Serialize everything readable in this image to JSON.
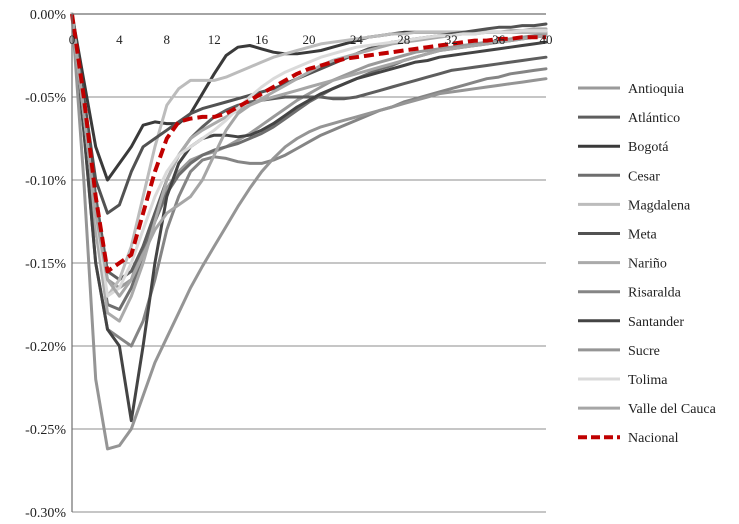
{
  "chart_data": {
    "type": "line",
    "title": "",
    "xlabel": "",
    "ylabel": "",
    "x": [
      0,
      1,
      2,
      3,
      4,
      5,
      6,
      7,
      8,
      9,
      10,
      11,
      12,
      13,
      14,
      15,
      16,
      17,
      18,
      19,
      20,
      21,
      22,
      23,
      24,
      25,
      26,
      27,
      28,
      29,
      30,
      31,
      32,
      33,
      34,
      35,
      36,
      37,
      38,
      39,
      40
    ],
    "xticks": [
      0,
      4,
      8,
      12,
      16,
      20,
      24,
      28,
      32,
      36,
      40
    ],
    "xtick_labels": [
      "0",
      "4",
      "8",
      "12",
      "16",
      "20",
      "24",
      "28",
      "32",
      "36",
      "40"
    ],
    "ylim": [
      -0.3,
      0.0
    ],
    "yticks": [
      0.0,
      -0.05,
      -0.1,
      -0.15,
      -0.2,
      -0.25,
      -0.3
    ],
    "ytick_labels": [
      "0.00%",
      "-0.05%",
      "-0.10%",
      "-0.15%",
      "-0.20%",
      "-0.25%",
      "-0.30%"
    ],
    "grid": "horizontal",
    "legend_position": "right",
    "series": [
      {
        "name": "Antioquia",
        "color": "#9a9a9a",
        "width": 3,
        "dash": "",
        "values": [
          0,
          -0.06,
          -0.12,
          -0.16,
          -0.165,
          -0.16,
          -0.14,
          -0.12,
          -0.105,
          -0.095,
          -0.088,
          -0.085,
          -0.083,
          -0.08,
          -0.076,
          -0.072,
          -0.067,
          -0.062,
          -0.057,
          -0.052,
          -0.048,
          -0.044,
          -0.04,
          -0.037,
          -0.034,
          -0.031,
          -0.029,
          -0.027,
          -0.025,
          -0.023,
          -0.022,
          -0.021,
          -0.02,
          -0.019,
          -0.018,
          -0.017,
          -0.016,
          -0.015,
          -0.014,
          -0.013,
          -0.012
        ]
      },
      {
        "name": "Atlántico",
        "color": "#5e5e5e",
        "width": 3,
        "dash": "",
        "values": [
          0,
          -0.05,
          -0.11,
          -0.155,
          -0.16,
          -0.155,
          -0.14,
          -0.12,
          -0.1,
          -0.085,
          -0.075,
          -0.068,
          -0.062,
          -0.058,
          -0.055,
          -0.053,
          -0.052,
          -0.051,
          -0.05,
          -0.05,
          -0.05,
          -0.05,
          -0.051,
          -0.051,
          -0.05,
          -0.048,
          -0.046,
          -0.044,
          -0.042,
          -0.04,
          -0.038,
          -0.036,
          -0.034,
          -0.033,
          -0.032,
          -0.031,
          -0.03,
          -0.029,
          -0.028,
          -0.027,
          -0.026
        ]
      },
      {
        "name": "Bogotá",
        "color": "#3a3a3a",
        "width": 3,
        "dash": "",
        "values": [
          0,
          -0.04,
          -0.08,
          -0.1,
          -0.09,
          -0.08,
          -0.067,
          -0.065,
          -0.066,
          -0.066,
          -0.06,
          -0.048,
          -0.036,
          -0.025,
          -0.02,
          -0.019,
          -0.021,
          -0.023,
          -0.024,
          -0.024,
          -0.023,
          -0.022,
          -0.02,
          -0.018,
          -0.016,
          -0.014,
          -0.013,
          -0.012,
          -0.011,
          -0.011,
          -0.011,
          -0.011,
          -0.011,
          -0.011,
          -0.011,
          -0.011,
          -0.011,
          -0.011,
          -0.011,
          -0.011,
          -0.011
        ]
      },
      {
        "name": "Cesar",
        "color": "#6e6e6e",
        "width": 3,
        "dash": "",
        "values": [
          0,
          -0.06,
          -0.13,
          -0.175,
          -0.178,
          -0.165,
          -0.145,
          -0.125,
          -0.108,
          -0.097,
          -0.09,
          -0.085,
          -0.082,
          -0.08,
          -0.078,
          -0.075,
          -0.072,
          -0.068,
          -0.063,
          -0.058,
          -0.053,
          -0.049,
          -0.045,
          -0.042,
          -0.039,
          -0.036,
          -0.033,
          -0.031,
          -0.028,
          -0.026,
          -0.024,
          -0.022,
          -0.021,
          -0.02,
          -0.019,
          -0.018,
          -0.017,
          -0.016,
          -0.015,
          -0.014,
          -0.013
        ]
      },
      {
        "name": "Magdalena",
        "color": "#bcbcbc",
        "width": 3,
        "dash": "",
        "values": [
          0,
          -0.06,
          -0.13,
          -0.17,
          -0.16,
          -0.14,
          -0.11,
          -0.08,
          -0.055,
          -0.045,
          -0.04,
          -0.04,
          -0.04,
          -0.038,
          -0.035,
          -0.032,
          -0.029,
          -0.026,
          -0.024,
          -0.022,
          -0.02,
          -0.018,
          -0.017,
          -0.016,
          -0.015,
          -0.014,
          -0.013,
          -0.012,
          -0.012,
          -0.011,
          -0.011,
          -0.011,
          -0.011,
          -0.011,
          -0.011,
          -0.011,
          -0.011,
          -0.011,
          -0.011,
          -0.011,
          -0.011
        ]
      },
      {
        "name": "Meta",
        "color": "#525252",
        "width": 3,
        "dash": "",
        "values": [
          0,
          -0.05,
          -0.1,
          -0.12,
          -0.115,
          -0.095,
          -0.08,
          -0.075,
          -0.07,
          -0.065,
          -0.06,
          -0.057,
          -0.055,
          -0.053,
          -0.051,
          -0.049,
          -0.047,
          -0.045,
          -0.042,
          -0.039,
          -0.036,
          -0.033,
          -0.03,
          -0.027,
          -0.024,
          -0.021,
          -0.019,
          -0.017,
          -0.016,
          -0.015,
          -0.014,
          -0.013,
          -0.012,
          -0.011,
          -0.01,
          -0.009,
          -0.008,
          -0.008,
          -0.007,
          -0.007,
          -0.006
        ]
      },
      {
        "name": "Nariño",
        "color": "#aaaaaa",
        "width": 3,
        "dash": "",
        "values": [
          0,
          -0.06,
          -0.13,
          -0.18,
          -0.185,
          -0.17,
          -0.15,
          -0.125,
          -0.1,
          -0.085,
          -0.075,
          -0.07,
          -0.066,
          -0.062,
          -0.058,
          -0.055,
          -0.051,
          -0.047,
          -0.043,
          -0.039,
          -0.035,
          -0.031,
          -0.028,
          -0.026,
          -0.024,
          -0.022,
          -0.02,
          -0.018,
          -0.017,
          -0.016,
          -0.015,
          -0.014,
          -0.013,
          -0.012,
          -0.012,
          -0.011,
          -0.011,
          -0.01,
          -0.01,
          -0.009,
          -0.009
        ]
      },
      {
        "name": "Risaralda",
        "color": "#858585",
        "width": 3,
        "dash": "",
        "values": [
          0,
          -0.07,
          -0.15,
          -0.19,
          -0.195,
          -0.2,
          -0.185,
          -0.16,
          -0.13,
          -0.11,
          -0.095,
          -0.088,
          -0.086,
          -0.087,
          -0.089,
          -0.09,
          -0.09,
          -0.088,
          -0.085,
          -0.081,
          -0.077,
          -0.073,
          -0.07,
          -0.067,
          -0.064,
          -0.061,
          -0.058,
          -0.056,
          -0.053,
          -0.051,
          -0.049,
          -0.047,
          -0.045,
          -0.043,
          -0.041,
          -0.039,
          -0.038,
          -0.036,
          -0.035,
          -0.034,
          -0.033
        ]
      },
      {
        "name": "Santander",
        "color": "#444444",
        "width": 3,
        "dash": "",
        "values": [
          0,
          -0.07,
          -0.15,
          -0.19,
          -0.2,
          -0.245,
          -0.2,
          -0.15,
          -0.11,
          -0.09,
          -0.08,
          -0.075,
          -0.073,
          -0.073,
          -0.074,
          -0.073,
          -0.07,
          -0.066,
          -0.061,
          -0.056,
          -0.052,
          -0.048,
          -0.045,
          -0.042,
          -0.039,
          -0.037,
          -0.035,
          -0.033,
          -0.031,
          -0.029,
          -0.028,
          -0.026,
          -0.025,
          -0.024,
          -0.023,
          -0.022,
          -0.021,
          -0.02,
          -0.019,
          -0.018,
          -0.017
        ]
      },
      {
        "name": "Sucre",
        "color": "#959595",
        "width": 3,
        "dash": "",
        "values": [
          0,
          -0.1,
          -0.22,
          -0.262,
          -0.26,
          -0.25,
          -0.23,
          -0.21,
          -0.195,
          -0.18,
          -0.165,
          -0.152,
          -0.14,
          -0.128,
          -0.116,
          -0.105,
          -0.095,
          -0.087,
          -0.08,
          -0.075,
          -0.071,
          -0.068,
          -0.066,
          -0.064,
          -0.062,
          -0.06,
          -0.058,
          -0.056,
          -0.054,
          -0.052,
          -0.05,
          -0.048,
          -0.047,
          -0.046,
          -0.045,
          -0.044,
          -0.043,
          -0.042,
          -0.041,
          -0.04,
          -0.039
        ]
      },
      {
        "name": "Tolima",
        "color": "#dadada",
        "width": 3,
        "dash": "",
        "values": [
          0,
          -0.06,
          -0.12,
          -0.17,
          -0.165,
          -0.15,
          -0.13,
          -0.11,
          -0.095,
          -0.085,
          -0.08,
          -0.075,
          -0.07,
          -0.064,
          -0.057,
          -0.05,
          -0.044,
          -0.039,
          -0.035,
          -0.032,
          -0.029,
          -0.026,
          -0.024,
          -0.022,
          -0.02,
          -0.019,
          -0.018,
          -0.017,
          -0.016,
          -0.015,
          -0.014,
          -0.013,
          -0.013,
          -0.012,
          -0.012,
          -0.011,
          -0.011,
          -0.011,
          -0.01,
          -0.01,
          -0.01
        ]
      },
      {
        "name": "Valle del Cauca",
        "color": "#a6a6a6",
        "width": 3,
        "dash": "",
        "values": [
          0,
          -0.06,
          -0.12,
          -0.16,
          -0.17,
          -0.16,
          -0.145,
          -0.13,
          -0.12,
          -0.115,
          -0.11,
          -0.1,
          -0.085,
          -0.07,
          -0.06,
          -0.055,
          -0.052,
          -0.05,
          -0.048,
          -0.046,
          -0.044,
          -0.042,
          -0.04,
          -0.038,
          -0.036,
          -0.034,
          -0.032,
          -0.03,
          -0.028,
          -0.026,
          -0.024,
          -0.022,
          -0.021,
          -0.02,
          -0.019,
          -0.018,
          -0.017,
          -0.016,
          -0.015,
          -0.014,
          -0.013
        ]
      },
      {
        "name": "Nacional",
        "color": "#c00000",
        "width": 4,
        "dash": "10,5",
        "values": [
          0,
          -0.05,
          -0.11,
          -0.155,
          -0.15,
          -0.145,
          -0.12,
          -0.095,
          -0.075,
          -0.065,
          -0.063,
          -0.062,
          -0.062,
          -0.06,
          -0.056,
          -0.052,
          -0.048,
          -0.044,
          -0.04,
          -0.036,
          -0.033,
          -0.031,
          -0.029,
          -0.027,
          -0.026,
          -0.025,
          -0.024,
          -0.023,
          -0.022,
          -0.021,
          -0.02,
          -0.019,
          -0.018,
          -0.017,
          -0.016,
          -0.016,
          -0.015,
          -0.015,
          -0.014,
          -0.014,
          -0.014
        ]
      }
    ]
  }
}
